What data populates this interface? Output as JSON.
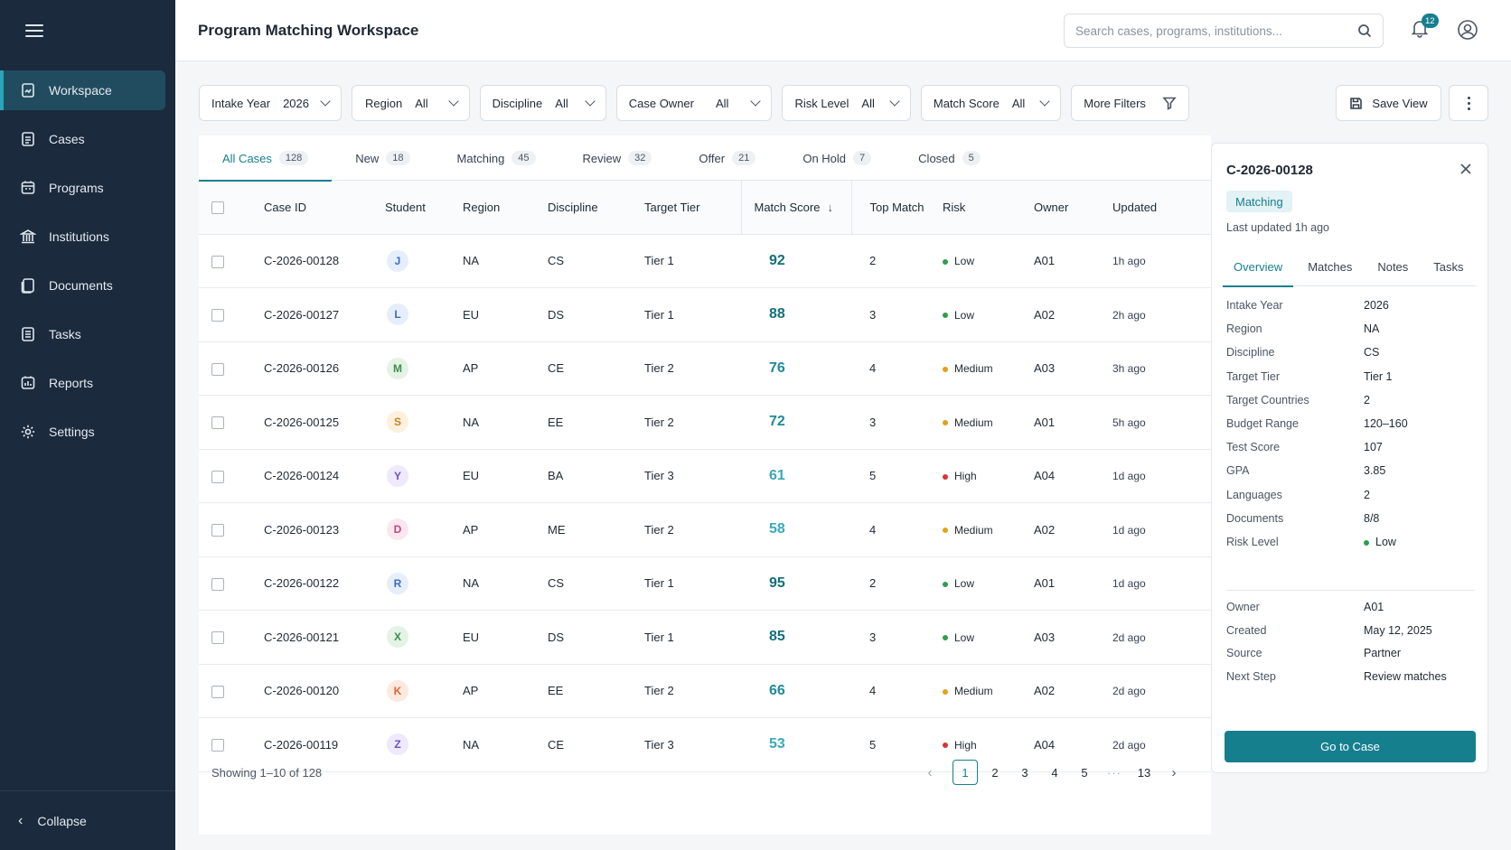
{
  "header": {
    "title": "Program Matching Workspace",
    "search_placeholder": "Search cases, programs, institutions...",
    "notification_count": "12"
  },
  "sidebar": {
    "items": [
      {
        "label": "Workspace",
        "icon": "workspace-icon",
        "active": true
      },
      {
        "label": "Cases",
        "icon": "cases-icon"
      },
      {
        "label": "Programs",
        "icon": "programs-icon"
      },
      {
        "label": "Institutions",
        "icon": "institutions-icon"
      },
      {
        "label": "Documents",
        "icon": "documents-icon"
      },
      {
        "label": "Tasks",
        "icon": "tasks-icon"
      },
      {
        "label": "Reports",
        "icon": "reports-icon"
      },
      {
        "label": "Settings",
        "icon": "gear-icon"
      }
    ],
    "collapse_label": "Collapse"
  },
  "filters": [
    {
      "label": "Intake Year",
      "value": "2026"
    },
    {
      "label": "Region",
      "value": "All"
    },
    {
      "label": "Discipline",
      "value": "All"
    },
    {
      "label": "Case Owner",
      "value": "All"
    },
    {
      "label": "Risk Level",
      "value": "All"
    },
    {
      "label": "Match Score",
      "value": "All"
    }
  ],
  "more_filters_label": "More Filters",
  "save_view_label": "Save View",
  "tabs": [
    {
      "label": "All Cases",
      "count": "128",
      "active": true
    },
    {
      "label": "New",
      "count": "18"
    },
    {
      "label": "Matching",
      "count": "45"
    },
    {
      "label": "Review",
      "count": "32"
    },
    {
      "label": "Offer",
      "count": "21"
    },
    {
      "label": "On Hold",
      "count": "7"
    },
    {
      "label": "Closed",
      "count": "5"
    }
  ],
  "table": {
    "columns": [
      "Case ID",
      "Student",
      "Region",
      "Discipline",
      "Target Tier",
      "Match Score",
      "Top Match",
      "Risk",
      "Owner",
      "Updated"
    ],
    "sort_indicator": "↓",
    "rows": [
      {
        "case_id": "C-2026-00128",
        "student": "J",
        "region": "NA",
        "discipline": "CS",
        "tier": "Tier 1",
        "score": "92",
        "top_match": "2",
        "risk": "Low",
        "owner": "A01",
        "updated": "1h ago"
      },
      {
        "case_id": "C-2026-00127",
        "student": "L",
        "region": "EU",
        "discipline": "DS",
        "tier": "Tier 1",
        "score": "88",
        "top_match": "3",
        "risk": "Low",
        "owner": "A02",
        "updated": "2h ago"
      },
      {
        "case_id": "C-2026-00126",
        "student": "M",
        "region": "AP",
        "discipline": "CE",
        "tier": "Tier 2",
        "score": "76",
        "top_match": "4",
        "risk": "Medium",
        "owner": "A03",
        "updated": "3h ago"
      },
      {
        "case_id": "C-2026-00125",
        "student": "S",
        "region": "NA",
        "discipline": "EE",
        "tier": "Tier 2",
        "score": "72",
        "top_match": "3",
        "risk": "Medium",
        "owner": "A01",
        "updated": "5h ago"
      },
      {
        "case_id": "C-2026-00124",
        "student": "Y",
        "region": "EU",
        "discipline": "BA",
        "tier": "Tier 3",
        "score": "61",
        "top_match": "5",
        "risk": "High",
        "owner": "A04",
        "updated": "1d ago"
      },
      {
        "case_id": "C-2026-00123",
        "student": "D",
        "region": "AP",
        "discipline": "ME",
        "tier": "Tier 2",
        "score": "58",
        "top_match": "4",
        "risk": "Medium",
        "owner": "A02",
        "updated": "1d ago"
      },
      {
        "case_id": "C-2026-00122",
        "student": "R",
        "region": "NA",
        "discipline": "CS",
        "tier": "Tier 1",
        "score": "95",
        "top_match": "2",
        "risk": "Low",
        "owner": "A01",
        "updated": "1d ago"
      },
      {
        "case_id": "C-2026-00121",
        "student": "X",
        "region": "EU",
        "discipline": "DS",
        "tier": "Tier 1",
        "score": "85",
        "top_match": "3",
        "risk": "Low",
        "owner": "A03",
        "updated": "2d ago"
      },
      {
        "case_id": "C-2026-00120",
        "student": "K",
        "region": "AP",
        "discipline": "EE",
        "tier": "Tier 2",
        "score": "66",
        "top_match": "4",
        "risk": "Medium",
        "owner": "A02",
        "updated": "2d ago"
      },
      {
        "case_id": "C-2026-00119",
        "student": "Z",
        "region": "NA",
        "discipline": "CE",
        "tier": "Tier 3",
        "score": "53",
        "top_match": "5",
        "risk": "High",
        "owner": "A04",
        "updated": "2d ago"
      }
    ]
  },
  "avatar_colors": {
    "J": {
      "bg": "#e6eefb",
      "fg": "#3b6fc4"
    },
    "L": {
      "bg": "#e6eefb",
      "fg": "#3b6fc4"
    },
    "M": {
      "bg": "#e4f3e6",
      "fg": "#3e8e4c"
    },
    "S": {
      "bg": "#fdf0dd",
      "fg": "#c98422"
    },
    "Y": {
      "bg": "#eee9fb",
      "fg": "#6c53c2"
    },
    "D": {
      "bg": "#fbe7f0",
      "fg": "#c2477f"
    },
    "R": {
      "bg": "#e6eefb",
      "fg": "#3b6fc4"
    },
    "X": {
      "bg": "#e4f3e6",
      "fg": "#3e8e4c"
    },
    "K": {
      "bg": "#fde9de",
      "fg": "#d0693a"
    },
    "Z": {
      "bg": "#eee9fb",
      "fg": "#6c53c2"
    }
  },
  "risk_colors": {
    "Low": "#2e9e4f",
    "Medium": "#e0a21b",
    "High": "#d6343a"
  },
  "accent_color": "#157f8e",
  "pagination": {
    "showing": "Showing 1–10 of 128",
    "pages": [
      "1",
      "2",
      "3",
      "4",
      "5"
    ],
    "ellipsis": "···",
    "last": "13",
    "current": "1",
    "prev": "‹",
    "next": "›"
  },
  "panel": {
    "case_id": "C-2026-00128",
    "status": "Matching",
    "last_updated": "Last updated 1h ago",
    "tabs": [
      "Overview",
      "Matches",
      "Notes",
      "Tasks"
    ],
    "fields": [
      {
        "k": "Intake Year",
        "v": "2026"
      },
      {
        "k": "Region",
        "v": "NA"
      },
      {
        "k": "Discipline",
        "v": "CS"
      },
      {
        "k": "Target Tier",
        "v": "Tier 1"
      },
      {
        "k": "Target Countries",
        "v": "2"
      },
      {
        "k": "Budget Range",
        "v": "120–160"
      },
      {
        "k": "Test Score",
        "v": "107"
      },
      {
        "k": "GPA",
        "v": "3.85"
      },
      {
        "k": "Languages",
        "v": "2"
      },
      {
        "k": "Documents",
        "v": "8/8"
      },
      {
        "k": "Risk Level",
        "v": "Low"
      }
    ],
    "meta": [
      {
        "k": "Owner",
        "v": "A01"
      },
      {
        "k": "Created",
        "v": "May 12, 2025"
      },
      {
        "k": "Source",
        "v": "Partner"
      },
      {
        "k": "Next Step",
        "v": "Review matches"
      }
    ],
    "go_label": "Go to Case"
  }
}
